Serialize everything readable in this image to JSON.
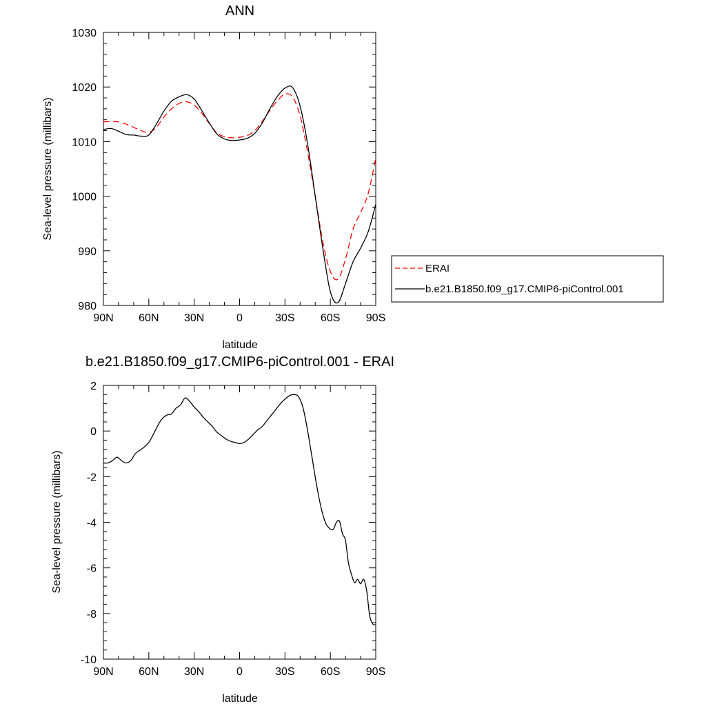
{
  "chart_data": [
    {
      "type": "line",
      "title": "ANN",
      "xlabel": "latitude",
      "ylabel": "Sea-level pressure (millibars)",
      "xlim": [
        90,
        -90
      ],
      "ylim": [
        980,
        1030
      ],
      "xticks": [
        90,
        60,
        30,
        0,
        -30,
        -60,
        -90
      ],
      "xtick_labels": [
        "90N",
        "60N",
        "30N",
        "0",
        "30S",
        "60S",
        "90S"
      ],
      "yticks": [
        980,
        990,
        1000,
        1010,
        1020,
        1030
      ],
      "ytick_labels": [
        "980",
        "990",
        "1000",
        "1010",
        "1020",
        "1030"
      ],
      "grid": false,
      "legend_position": "right",
      "series": [
        {
          "name": "ERAI",
          "color": "#ff0000",
          "dash": "dashed",
          "x": [
            90,
            85,
            80,
            75,
            70,
            65,
            60,
            55,
            50,
            45,
            40,
            35,
            30,
            25,
            20,
            15,
            10,
            5,
            0,
            -5,
            -10,
            -15,
            -20,
            -25,
            -30,
            -35,
            -40,
            -45,
            -50,
            -55,
            -60,
            -65,
            -70,
            -75,
            -80,
            -85,
            -90
          ],
          "y": [
            1013.6,
            1013.7,
            1013.6,
            1013.2,
            1012.6,
            1012.0,
            1011.7,
            1012.6,
            1014.5,
            1016.0,
            1017.0,
            1017.3,
            1016.7,
            1015.2,
            1013.3,
            1011.6,
            1010.9,
            1010.7,
            1010.8,
            1011.1,
            1012.0,
            1013.7,
            1015.7,
            1017.5,
            1018.7,
            1018.2,
            1014.7,
            1008.0,
            1000.0,
            991.7,
            986.2,
            984.8,
            988.5,
            994.0,
            997.0,
            1000.5,
            1007.0
          ]
        },
        {
          "name": "b.e21.B1850.f09_g17.CMIP6-piControl.001",
          "color": "#000000",
          "dash": "solid",
          "x": [
            90,
            85,
            80,
            75,
            70,
            65,
            60,
            55,
            50,
            45,
            40,
            35,
            30,
            25,
            20,
            15,
            10,
            5,
            0,
            -5,
            -10,
            -15,
            -20,
            -25,
            -30,
            -35,
            -40,
            -45,
            -50,
            -55,
            -60,
            -65,
            -70,
            -75,
            -80,
            -85,
            -90
          ],
          "y": [
            1012.2,
            1012.4,
            1011.9,
            1011.3,
            1011.2,
            1011.0,
            1011.2,
            1013.2,
            1015.6,
            1017.4,
            1018.2,
            1018.6,
            1017.8,
            1015.7,
            1013.4,
            1011.4,
            1010.5,
            1010.2,
            1010.3,
            1010.6,
            1011.5,
            1013.4,
            1016.0,
            1018.3,
            1019.8,
            1019.9,
            1016.5,
            1009.5,
            1000.0,
            990.5,
            982.5,
            980.5,
            984.0,
            988.0,
            990.5,
            993.5,
            998.5
          ]
        }
      ]
    },
    {
      "type": "line",
      "title": "b.e21.B1850.f09_g17.CMIP6-piControl.001 - ERAI",
      "xlabel": "latitude",
      "ylabel": "Sea-level pressure (millibars)",
      "xlim": [
        90,
        -90
      ],
      "ylim": [
        -10,
        2
      ],
      "xticks": [
        90,
        60,
        30,
        0,
        -30,
        -60,
        -90
      ],
      "xtick_labels": [
        "90N",
        "60N",
        "30N",
        "0",
        "30S",
        "60S",
        "90S"
      ],
      "yticks": [
        -10,
        -8,
        -6,
        -4,
        -2,
        0,
        2
      ],
      "ytick_labels": [
        "-10",
        "-8",
        "-6",
        "-4",
        "-2",
        "0",
        "2"
      ],
      "grid": false,
      "series": [
        {
          "color": "#000000",
          "dash": "solid",
          "x": [
            90,
            87,
            84,
            81,
            78,
            75,
            72,
            69,
            66,
            63,
            60,
            57,
            54,
            51,
            48,
            45,
            42,
            39,
            36,
            33,
            30,
            27,
            24,
            21,
            18,
            15,
            12,
            9,
            6,
            3,
            0,
            -3,
            -6,
            -9,
            -12,
            -15,
            -18,
            -21,
            -24,
            -27,
            -30,
            -33,
            -36,
            -39,
            -42,
            -45,
            -48,
            -51,
            -54,
            -57,
            -60,
            -62,
            -64,
            -66,
            -68,
            -70,
            -72,
            -74,
            -76,
            -78,
            -80,
            -82,
            -84,
            -86,
            -88,
            -90
          ],
          "y": [
            -1.4,
            -1.4,
            -1.3,
            -1.15,
            -1.3,
            -1.4,
            -1.3,
            -1.0,
            -0.85,
            -0.7,
            -0.5,
            -0.15,
            0.25,
            0.55,
            0.7,
            0.75,
            1.0,
            1.15,
            1.45,
            1.3,
            1.05,
            0.85,
            0.6,
            0.4,
            0.2,
            -0.05,
            -0.2,
            -0.35,
            -0.45,
            -0.5,
            -0.55,
            -0.5,
            -0.35,
            -0.15,
            0.05,
            0.2,
            0.45,
            0.7,
            0.95,
            1.2,
            1.4,
            1.55,
            1.6,
            1.5,
            1.0,
            0.0,
            -1.2,
            -2.4,
            -3.4,
            -4.05,
            -4.3,
            -4.3,
            -4.0,
            -3.95,
            -4.5,
            -4.8,
            -5.8,
            -6.3,
            -6.65,
            -6.5,
            -6.7,
            -6.5,
            -7.0,
            -8.1,
            -8.45,
            -8.5
          ]
        }
      ]
    }
  ],
  "legend": {
    "items": [
      {
        "label": "ERAI",
        "color": "#ff0000",
        "dash": "dashed"
      },
      {
        "label": "b.e21.B1850.f09_g17.CMIP6-piControl.001",
        "color": "#000000",
        "dash": "solid"
      }
    ]
  }
}
